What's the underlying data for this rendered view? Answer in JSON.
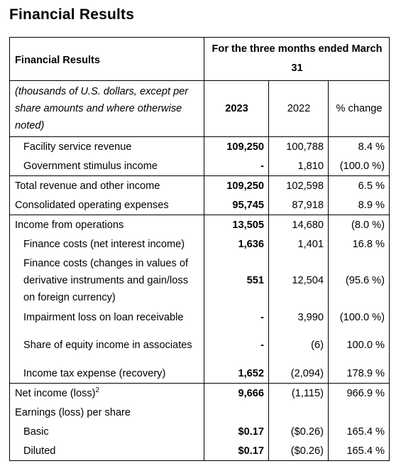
{
  "page_title": "Financial Results",
  "table": {
    "header": {
      "label": "Financial Results",
      "period": "For the three months ended March 31",
      "note": "(thousands of U.S. dollars, except per share amounts and where otherwise noted)",
      "col_2023": "2023",
      "col_2022": "2022",
      "col_change": "% change"
    },
    "rows": [
      {
        "label": "Facility service revenue",
        "v2023": "109,250",
        "v2022": "100,788",
        "change": "8.4 %"
      },
      {
        "label": "Government stimulus income",
        "v2023": "-",
        "v2022": "1,810",
        "change": "(100.0 %)"
      },
      {
        "label": "Total revenue and other income",
        "v2023": "109,250",
        "v2022": "102,598",
        "change": "6.5 %"
      },
      {
        "label": "Consolidated operating expenses",
        "v2023": "95,745",
        "v2022": "87,918",
        "change": "8.9 %"
      },
      {
        "label": "Income from operations",
        "v2023": "13,505",
        "v2022": "14,680",
        "change": "(8.0 %)"
      },
      {
        "label": "Finance costs (net interest income)",
        "v2023": "1,636",
        "v2022": "1,401",
        "change": "16.8 %"
      },
      {
        "label": "Finance costs (changes in values of derivative instruments and gain/loss on foreign currency)",
        "v2023": "551",
        "v2022": "12,504",
        "change": "(95.6 %)"
      },
      {
        "label": "Impairment loss on loan receivable",
        "v2023": "-",
        "v2022": "3,990",
        "change": "(100.0 %)"
      },
      {
        "label": "Share of equity income in associates",
        "v2023": "-",
        "v2022": "(6)",
        "change": "100.0 %"
      },
      {
        "label": "Income tax expense (recovery)",
        "v2023": "1,652",
        "v2022": "(2,094)",
        "change": "178.9 %"
      },
      {
        "label": "Net income (loss)",
        "footnote": "2",
        "v2023": "9,666",
        "v2022": "(1,115)",
        "change": "966.9 %"
      },
      {
        "label": "Earnings (loss) per share"
      },
      {
        "label": "Basic",
        "v2023": "$0.17",
        "v2022": "($0.26)",
        "change": "165.4 %"
      },
      {
        "label": "Diluted",
        "v2023": "$0.17",
        "v2022": "($0.26)",
        "change": "165.4 %"
      }
    ]
  }
}
